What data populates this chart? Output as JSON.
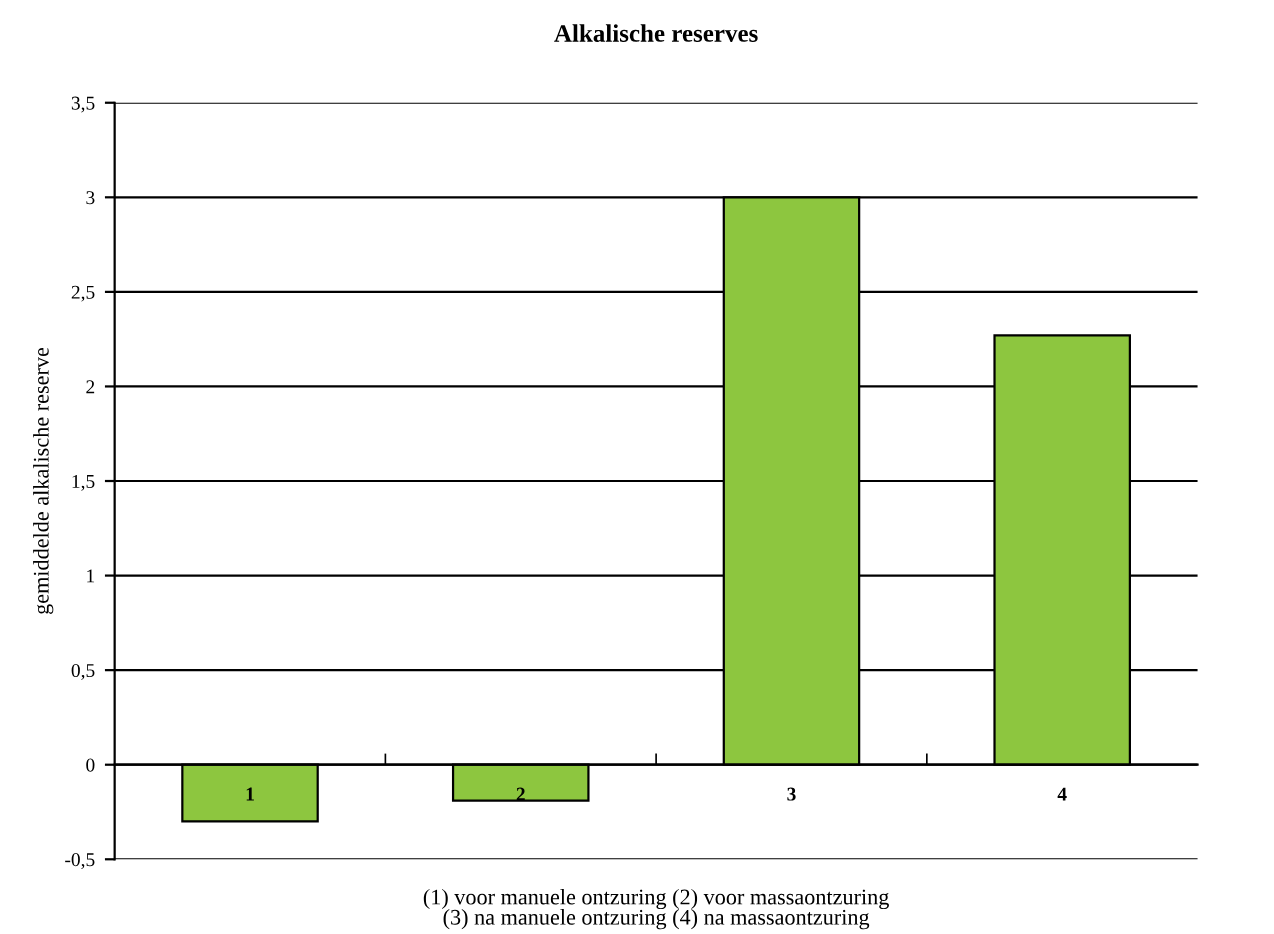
{
  "chart_data": {
    "type": "bar",
    "title": "Alkalische reserves",
    "ylabel": "gemiddelde alkalische reserve",
    "xlabel": "(1) voor manuele ontzuring (2) voor massaontzuring\n(3) na manuele ontzuring (4) na massaontzuring",
    "categories": [
      "1",
      "2",
      "3",
      "4"
    ],
    "values": [
      -0.3,
      -0.19,
      3.0,
      2.27
    ],
    "color": "#8dc63f",
    "ylim": [
      -0.5,
      3.5
    ],
    "yticks": [
      {
        "value": -0.5,
        "label": "-0,5"
      },
      0,
      {
        "value": 0.5,
        "label": "0,5"
      },
      1,
      {
        "value": 1.5,
        "label": "1,5"
      },
      2,
      {
        "value": 2.5,
        "label": "2,5"
      },
      3,
      {
        "value": 3.5,
        "label": "3,5"
      }
    ],
    "grid": "y",
    "legend": false
  }
}
